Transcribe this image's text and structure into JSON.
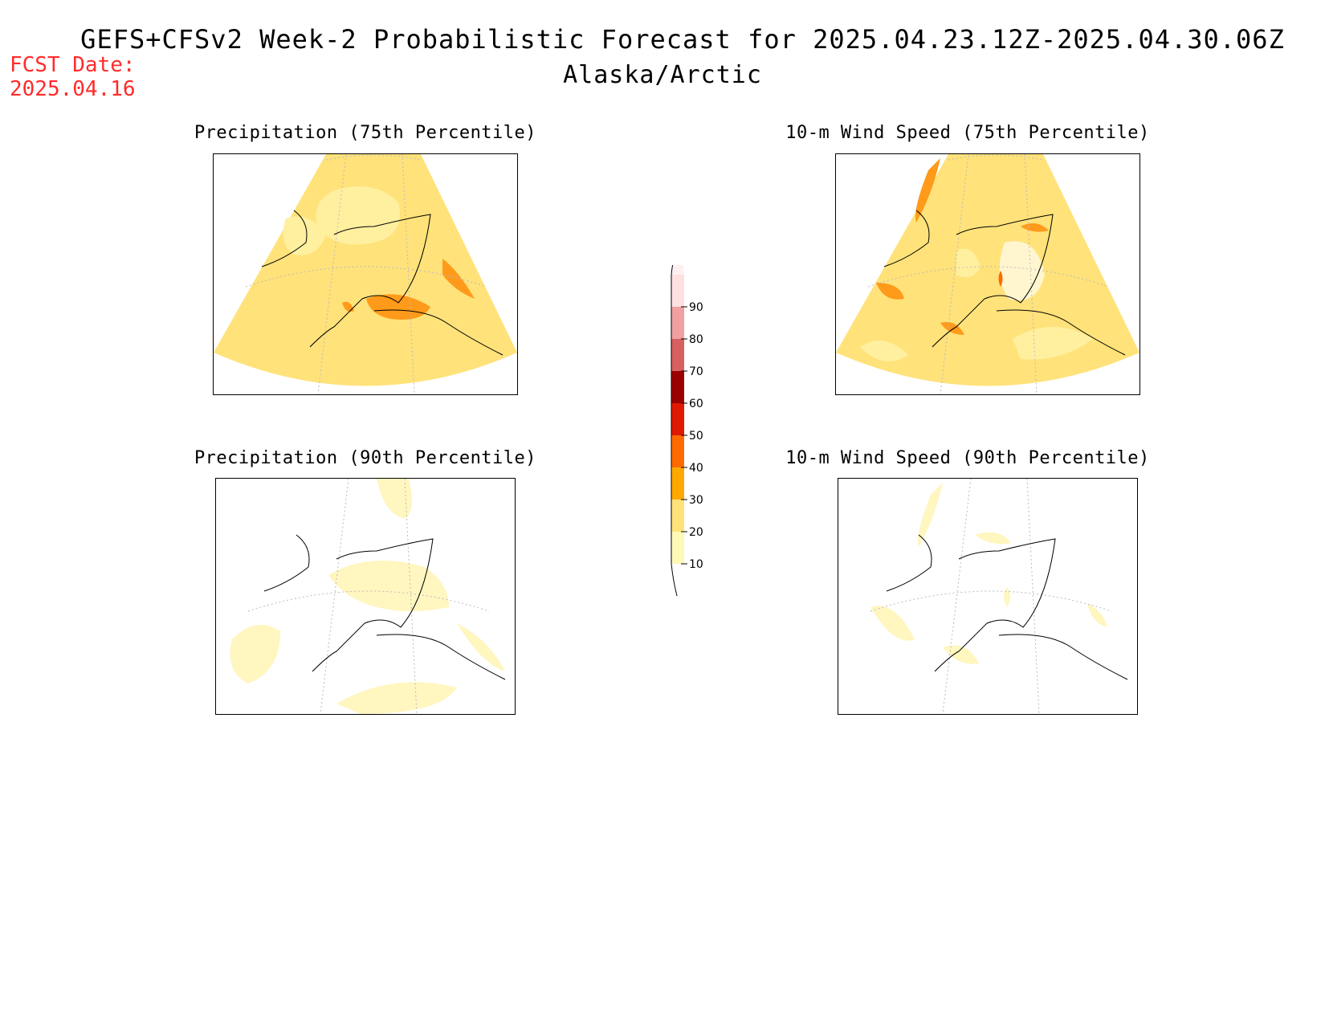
{
  "header": {
    "title": "GEFS+CFSv2 Week-2 Probabilistic Forecast for 2025.04.23.12Z-2025.04.30.06Z",
    "region": "Alaska/Arctic",
    "fcst_label_line1": "FCST Date:",
    "fcst_label_line2": "2025.04.16"
  },
  "panels": [
    {
      "title": "Precipitation (75th Percentile)"
    },
    {
      "title": "10-m Wind Speed (75th Percentile)"
    },
    {
      "title": "Precipitation (90th Percentile)"
    },
    {
      "title": "10-m Wind Speed (90th Percentile)"
    }
  ],
  "colorbar": {
    "levels": [
      "10",
      "20",
      "30",
      "40",
      "50",
      "60",
      "70",
      "80",
      "90"
    ],
    "colors": [
      "#fff9b8",
      "#ffe27a",
      "#ffa800",
      "#ff6a00",
      "#e01a00",
      "#9b0000",
      "#d86060",
      "#f0a0a0",
      "#fde0e0"
    ]
  }
}
